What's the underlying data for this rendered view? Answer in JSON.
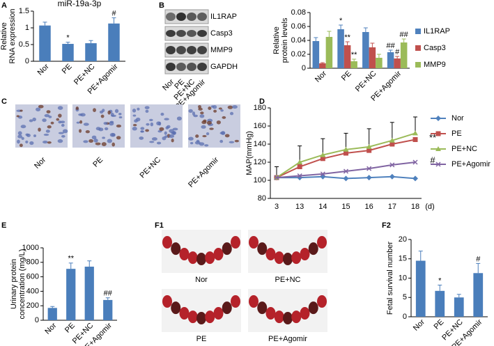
{
  "chart_data": [
    {
      "type": "bar",
      "title": "miR-19a-3p",
      "ylabel": [
        "Relative",
        "RNA expression"
      ],
      "categories": [
        "Nor",
        "PE",
        "PE+NC",
        "PE+Agomir"
      ],
      "values": [
        1.07,
        0.52,
        0.54,
        1.13
      ],
      "errors": [
        0.1,
        0.05,
        0.08,
        0.17
      ],
      "annotations": [
        null,
        "*",
        null,
        "#"
      ],
      "color": "#4a7ebb",
      "ylim": [
        0,
        1.5
      ],
      "yticks": [
        0,
        0.5,
        1,
        1.5
      ]
    },
    {
      "type": "bar",
      "ylabel": [
        "Relative",
        "protein levels"
      ],
      "categories": [
        "Nor",
        "PE",
        "PE+NC",
        "PE+Agomir"
      ],
      "series": [
        {
          "name": "IL1RAP",
          "color": "#4f81bd",
          "values": [
            0.039,
            0.056,
            0.052,
            0.023
          ],
          "errors": [
            0.005,
            0.006,
            0.006,
            0.003
          ],
          "annotations": [
            null,
            "*",
            null,
            "##"
          ]
        },
        {
          "name": "Casp3",
          "color": "#c0504d",
          "values": [
            0.007,
            0.033,
            0.03,
            0.014
          ],
          "errors": [
            0.001,
            0.005,
            0.006,
            0.003
          ],
          "annotations": [
            null,
            "**",
            null,
            "#"
          ]
        },
        {
          "name": "MMP9",
          "color": "#9bbb59",
          "values": [
            0.045,
            0.01,
            0.015,
            0.037
          ],
          "errors": [
            0.008,
            0.003,
            0.005,
            0.005
          ],
          "annotations": [
            null,
            "**",
            null,
            "##"
          ]
        }
      ],
      "ylim": [
        0,
        0.08
      ],
      "yticks": [
        0,
        0.02,
        0.04,
        0.06,
        0.08
      ],
      "legend": "right"
    },
    {
      "type": "line",
      "ylabel": [
        "MAP(mmHg)"
      ],
      "xlabel": "(d)",
      "categories": [
        "3",
        "13",
        "14",
        "15",
        "16",
        "17",
        "18"
      ],
      "series": [
        {
          "name": "Nor",
          "color": "#4f81bd",
          "marker": "diamond",
          "values": [
            103,
            103,
            104,
            102,
            103,
            104,
            102
          ]
        },
        {
          "name": "PE",
          "color": "#c0504d",
          "marker": "square",
          "values": [
            103,
            115,
            124,
            130,
            133,
            140,
            145
          ],
          "annotation": "**"
        },
        {
          "name": "PE+NC",
          "color": "#9bbb59",
          "marker": "triangle",
          "values": [
            103,
            120,
            128,
            134,
            137,
            144,
            152
          ],
          "errors": [
            12,
            18,
            18,
            18,
            20,
            20,
            18
          ]
        },
        {
          "name": "PE+Agomir",
          "color": "#8064a2",
          "marker": "cross",
          "values": [
            103,
            105,
            107,
            110,
            113,
            117,
            120
          ],
          "annotation": "#"
        }
      ],
      "ylim": [
        80,
        180
      ],
      "yticks": [
        80,
        100,
        120,
        140,
        160,
        180
      ],
      "legend": "right"
    },
    {
      "type": "bar",
      "ylabel": [
        "Urinary protein",
        "concentration (mg/L)"
      ],
      "categories": [
        "Nor",
        "PE",
        "PE+NC",
        "PE+Agomir"
      ],
      "values": [
        170,
        710,
        740,
        280
      ],
      "errors": [
        20,
        80,
        80,
        30
      ],
      "annotations": [
        null,
        "**",
        null,
        "##"
      ],
      "color": "#4a7ebb",
      "ylim": [
        0,
        1000
      ],
      "yticks": [
        0,
        200,
        400,
        600,
        800,
        1000
      ]
    },
    {
      "type": "bar",
      "ylabel": [
        "Fetal survival number"
      ],
      "categories": [
        "Nor",
        "PE",
        "PE+NC",
        "PE+Agomir"
      ],
      "values": [
        14.5,
        6.7,
        5,
        11.3
      ],
      "errors": [
        2.5,
        1.5,
        0.8,
        2.5
      ],
      "annotations": [
        null,
        "*",
        null,
        "#"
      ],
      "color": "#4a7ebb",
      "ylim": [
        0,
        20
      ],
      "yticks": [
        0,
        5,
        10,
        15,
        20
      ]
    }
  ],
  "figure": {
    "panel_labels": [
      "A",
      "B",
      "C",
      "D",
      "E",
      "F1",
      "F2"
    ],
    "blot_labels": [
      "IL1RAP",
      "Casp3",
      "MMP9",
      "GAPDH"
    ],
    "blot_lanes": [
      "Nor",
      "PE",
      "PE+NC",
      "PE+Agomir"
    ],
    "micrograph_labels": [
      "Nor",
      "PE",
      "PE+NC",
      "PE+Agomir"
    ],
    "photo_labels": [
      "Nor",
      "PE+NC",
      "PE",
      "PE+Agomir"
    ]
  }
}
